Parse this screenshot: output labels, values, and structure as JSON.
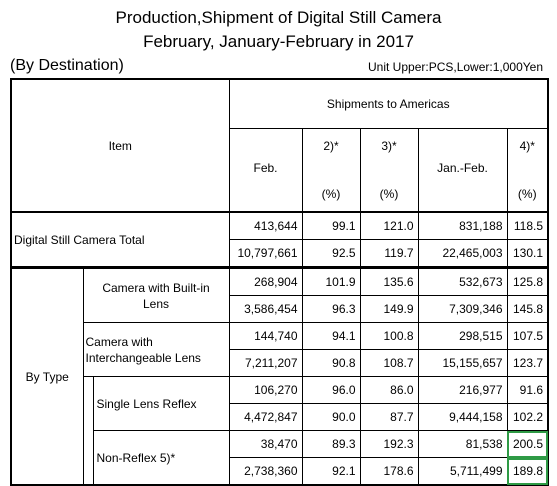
{
  "title_line1": "Production,Shipment of Digital Still Camera",
  "title_line2": "February, January-February in 2017",
  "destination": "(By Destination)",
  "unit": "Unit Upper:PCS,Lower:1,000Yen",
  "header": {
    "item": "Item",
    "group": "Shipments to Americas",
    "cols": [
      "Feb.",
      "2)*",
      "3)*",
      "Jan.-Feb.",
      "4)*"
    ],
    "pct": "(%)"
  },
  "total": {
    "label": "Digital Still Camera Total",
    "upper": [
      "413,644",
      "99.1",
      "121.0",
      "831,188",
      "118.5"
    ],
    "lower": [
      "10,797,661",
      "92.5",
      "119.7",
      "22,465,003",
      "130.1"
    ]
  },
  "by_type": {
    "label": "By Type",
    "rows": [
      {
        "label": "Camera with Built-in Lens",
        "upper": [
          "268,904",
          "101.9",
          "135.6",
          "532,673",
          "125.8"
        ],
        "lower": [
          "3,586,454",
          "96.3",
          "149.9",
          "7,309,346",
          "145.8"
        ]
      },
      {
        "label": "Camera with Interchangeable Lens",
        "upper": [
          "144,740",
          "94.1",
          "100.8",
          "298,515",
          "107.5"
        ],
        "lower": [
          "7,211,207",
          "90.8",
          "108.7",
          "15,155,657",
          "123.7"
        ]
      },
      {
        "label": "Single Lens Reflex",
        "upper": [
          "106,270",
          "96.0",
          "86.0",
          "216,977",
          "91.6"
        ],
        "lower": [
          "4,472,847",
          "90.0",
          "87.7",
          "9,444,158",
          "102.2"
        ]
      },
      {
        "label": "Non-Reflex 5)*",
        "upper": [
          "38,470",
          "89.3",
          "192.3",
          "81,538",
          "200.5"
        ],
        "lower": [
          "2,738,360",
          "92.1",
          "178.6",
          "5,711,499",
          "189.8"
        ]
      }
    ]
  },
  "highlight_color": "#2e9a45"
}
